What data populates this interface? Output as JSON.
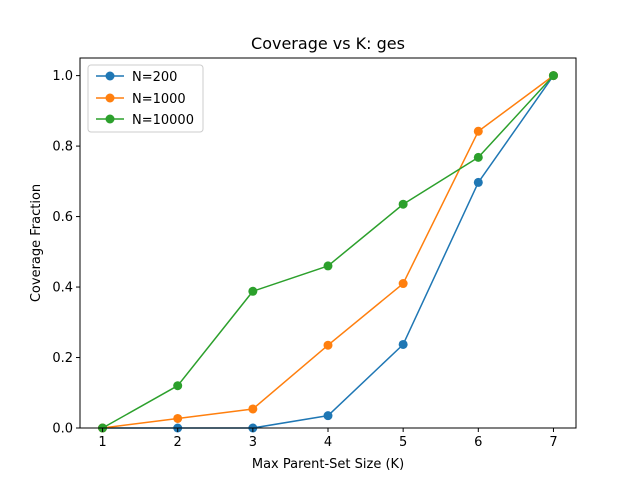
{
  "chart_data": {
    "type": "line",
    "title": "Coverage vs K: ges",
    "xlabel": "Max Parent-Set Size (K)",
    "ylabel": "Coverage Fraction",
    "x": [
      1,
      2,
      3,
      4,
      5,
      6,
      7
    ],
    "xlim": [
      0.7,
      7.3
    ],
    "ylim": [
      0,
      1.05
    ],
    "xticks": [
      1,
      2,
      3,
      4,
      5,
      6,
      7
    ],
    "yticks": [
      0.0,
      0.2,
      0.4,
      0.6,
      0.8,
      1.0
    ],
    "ytick_labels": [
      "0.0",
      "0.2",
      "0.4",
      "0.6",
      "0.8",
      "1.0"
    ],
    "grid": false,
    "legend_position": "top-left",
    "markers": "circle",
    "series": [
      {
        "name": "N=200",
        "color": "#1f77b4",
        "values": [
          0.0,
          0.0,
          0.0,
          0.035,
          0.237,
          0.697,
          1.0
        ]
      },
      {
        "name": "N=1000",
        "color": "#ff7f0e",
        "values": [
          0.0,
          0.027,
          0.054,
          0.235,
          0.41,
          0.842,
          1.0
        ]
      },
      {
        "name": "N=10000",
        "color": "#2ca02c",
        "values": [
          0.0,
          0.12,
          0.388,
          0.46,
          0.635,
          0.768,
          1.0
        ]
      }
    ]
  }
}
